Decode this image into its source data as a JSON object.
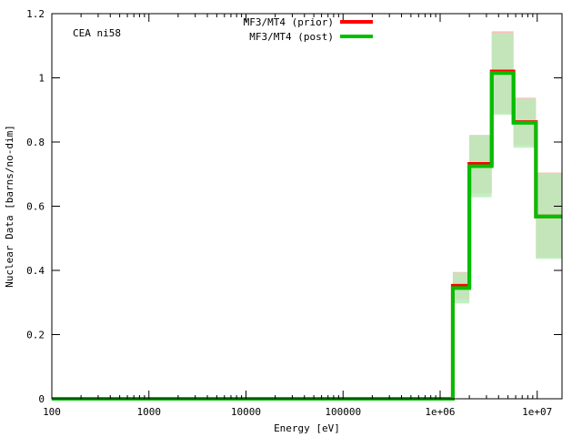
{
  "chart_data": {
    "type": "line",
    "title": "",
    "annotation": "CEA ni58",
    "xlabel": "Energy [eV]",
    "ylabel": "Nuclear Data [barns/no-dim]",
    "xscale": "log",
    "xlim": [
      100,
      18000000
    ],
    "ylim": [
      0,
      1.2
    ],
    "xticks": [
      {
        "value": 100,
        "label": "100"
      },
      {
        "value": 1000,
        "label": "1000"
      },
      {
        "value": 10000,
        "label": "10000"
      },
      {
        "value": 100000,
        "label": "100000"
      },
      {
        "value": 1000000,
        "label": "1e+06"
      },
      {
        "value": 10000000,
        "label": "1e+07"
      }
    ],
    "yticks": [
      {
        "value": 0,
        "label": "0"
      },
      {
        "value": 0.2,
        "label": "0.2"
      },
      {
        "value": 0.4,
        "label": "0.4"
      },
      {
        "value": 0.6,
        "label": "0.6"
      },
      {
        "value": 0.8,
        "label": "0.8"
      },
      {
        "value": 1.0,
        "label": "1"
      },
      {
        "value": 1.2,
        "label": "1.2"
      }
    ],
    "bin_edges": [
      100,
      1350000,
      2000000,
      3400000,
      5700000,
      9700000,
      18000000
    ],
    "legend_position": "top-center",
    "grid": false,
    "series": [
      {
        "name": "MF3/MT4 (prior)",
        "color": "#ff0000",
        "band_color": "#ffbdbd",
        "values": [
          0,
          0.352,
          0.732,
          1.02,
          0.862,
          0.568
        ],
        "band_low": [
          0,
          0.31,
          0.64,
          0.89,
          0.79,
          0.44
        ],
        "band_high": [
          0,
          0.395,
          0.822,
          1.145,
          0.938,
          0.705
        ]
      },
      {
        "name": "MF3/MT4 (post)",
        "color": "#00bf00",
        "band_color": "#b8ecb8",
        "values": [
          0,
          0.345,
          0.725,
          1.015,
          0.86,
          0.568
        ],
        "band_low": [
          0,
          0.297,
          0.628,
          0.885,
          0.782,
          0.436
        ],
        "band_high": [
          0,
          0.393,
          0.82,
          1.14,
          0.935,
          0.703
        ]
      }
    ]
  }
}
